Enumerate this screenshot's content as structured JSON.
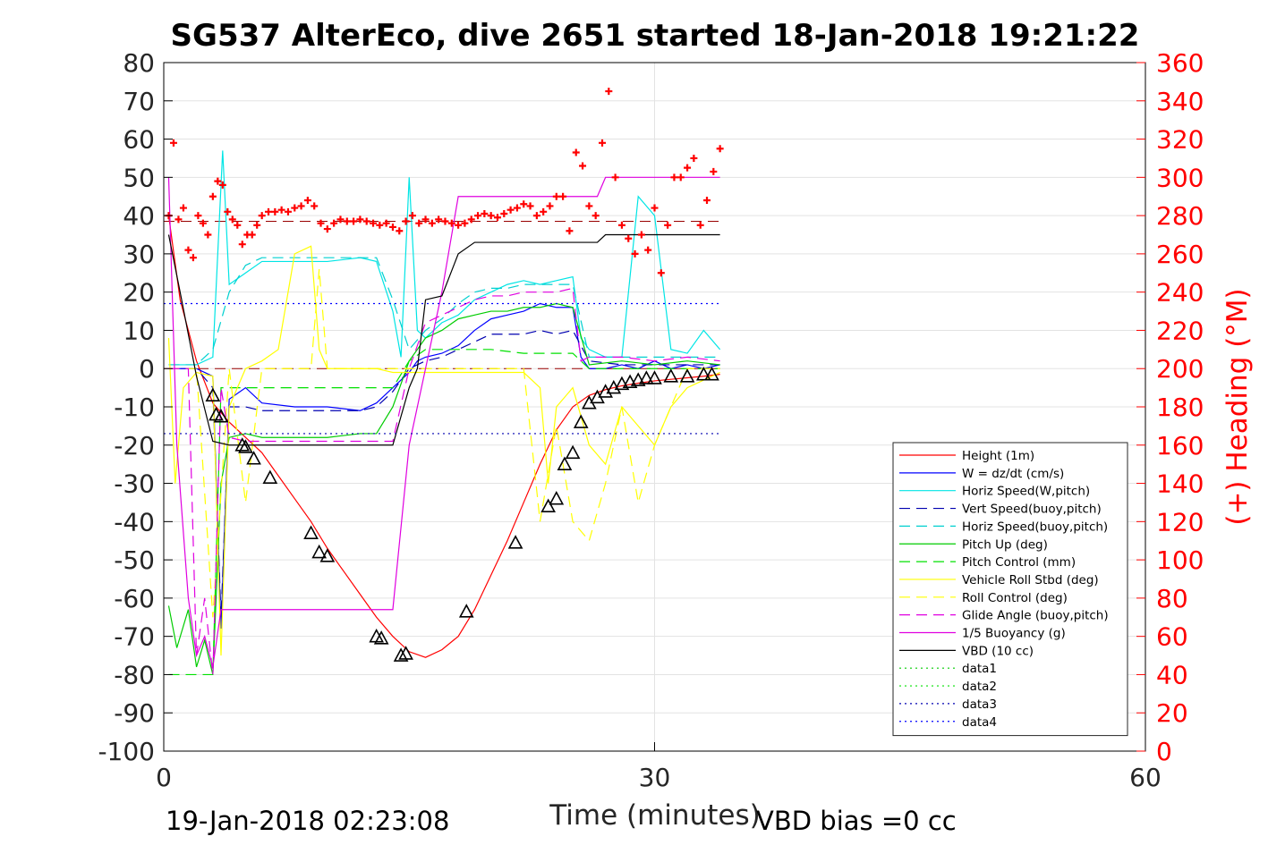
{
  "chart_data": {
    "type": "line",
    "title": "SG537 AlterEco, dive 2651 started 18-Jan-2018 19:21:22",
    "xlabel": "Time (minutes)",
    "ylabel_right": "(+) Heading (°M)",
    "xlim": [
      0,
      60
    ],
    "ylim": [
      -100,
      80
    ],
    "ylim_right": [
      0,
      360
    ],
    "xticks": [
      "0",
      "30",
      "60"
    ],
    "yticks": [
      "80",
      "70",
      "60",
      "50",
      "40",
      "30",
      "20",
      "10",
      "0",
      "-10",
      "-20",
      "-30",
      "-40",
      "-50",
      "-60",
      "-70",
      "-80",
      "-90",
      "-100"
    ],
    "yticks_right": [
      "360",
      "340",
      "320",
      "300",
      "280",
      "260",
      "240",
      "220",
      "200",
      "180",
      "160",
      "140",
      "120",
      "100",
      "80",
      "60",
      "40",
      "20",
      "0"
    ],
    "grid": true,
    "legend_position": "bottom-right",
    "footer_left": "19-Jan-2018 02:23:08",
    "footer_right": "VBD bias =0 cc",
    "colors": {
      "right_axis": "#ff0000",
      "heading_marker": "#ff0000"
    },
    "series": [
      {
        "name": "Height (1m)",
        "color": "#ff0000",
        "style": "solid",
        "x": [
          0.3,
          1,
          2,
          3,
          4,
          5,
          6,
          7,
          8,
          9,
          10,
          11,
          12,
          13,
          14,
          15,
          16,
          17,
          18,
          19,
          20,
          21,
          22,
          23,
          24,
          25,
          26,
          27,
          28,
          29,
          30,
          31,
          32,
          33,
          34
        ],
        "y": [
          40,
          18,
          2,
          -9,
          -14,
          -18,
          -22,
          -28,
          -34,
          -40,
          -47,
          -53,
          -59,
          -65,
          -70,
          -74,
          -75.5,
          -73.5,
          -70,
          -63,
          -54,
          -45,
          -35,
          -25,
          -16,
          -10,
          -7,
          -5.5,
          -4.5,
          -3.8,
          -3.2,
          -2.8,
          -2.4,
          -2,
          -1.5
        ]
      },
      {
        "name": "W = dz/dt (cm/s)",
        "color": "#0000ff",
        "style": "solid",
        "x": [
          0.3,
          1,
          2,
          3,
          3.5,
          4,
          5,
          6,
          8,
          10,
          12,
          13,
          14,
          15,
          15.5,
          16,
          17,
          18,
          19,
          20,
          21,
          22,
          23,
          24,
          25,
          25.5,
          26,
          27,
          28,
          29,
          30,
          31,
          32,
          33,
          34
        ],
        "y": [
          0,
          0,
          0,
          -2,
          -68,
          -8,
          -5,
          -9,
          -10,
          -10,
          -11,
          -9,
          -5,
          -1,
          2,
          3,
          4,
          6,
          10,
          13,
          14,
          15,
          17,
          16,
          16,
          3,
          0,
          0,
          1,
          0,
          2,
          0,
          1,
          0,
          1
        ]
      },
      {
        "name": "Horiz Speed(W,pitch)",
        "color": "#00e5e5",
        "style": "solid",
        "x": [
          0.3,
          1,
          2,
          3,
          3.3,
          3.6,
          4,
          5,
          6,
          8,
          10,
          12,
          13,
          14,
          14.5,
          15,
          15.5,
          16,
          17,
          18,
          19,
          20,
          21,
          22,
          23,
          24,
          25,
          25.5,
          26,
          27,
          28,
          29,
          30,
          31,
          32,
          33,
          34
        ],
        "y": [
          1,
          1,
          1,
          3,
          30,
          57,
          22,
          25,
          28,
          28,
          28,
          29,
          28,
          15,
          3,
          50,
          10,
          8,
          12,
          14,
          18,
          20,
          22,
          23,
          22,
          23,
          24,
          8,
          5,
          3,
          3,
          45,
          40,
          5,
          4,
          10,
          5
        ]
      },
      {
        "name": "Vert Speed(buoy,pitch)",
        "color": "#0000b0",
        "style": "dashed",
        "x": [
          0.3,
          1,
          2,
          3,
          3.5,
          4,
          5,
          6,
          8,
          10,
          12,
          13,
          14,
          15,
          16,
          17,
          18,
          19,
          20,
          21,
          22,
          23,
          24,
          25,
          26,
          28,
          30,
          32,
          34
        ],
        "y": [
          0,
          0,
          0,
          -5,
          -65,
          -10,
          -10,
          -11,
          -11,
          -11,
          -11,
          -10,
          -6,
          0,
          2,
          3,
          5,
          7,
          9,
          9,
          9,
          10,
          9,
          10,
          2,
          1,
          1,
          1,
          1
        ]
      },
      {
        "name": "Horiz Speed(buoy,pitch)",
        "color": "#00d0d0",
        "style": "dashed",
        "x": [
          0.3,
          1,
          2,
          3,
          4,
          5,
          6,
          8,
          10,
          12,
          13,
          14,
          15,
          16,
          17,
          18,
          19,
          20,
          21,
          22,
          23,
          24,
          25,
          26,
          28,
          30,
          32,
          34
        ],
        "y": [
          1,
          1,
          1,
          5,
          20,
          27,
          29,
          29,
          29,
          29,
          29,
          18,
          5,
          10,
          13,
          17,
          20,
          21,
          21,
          22,
          22,
          22,
          22,
          3,
          3,
          3,
          3,
          3
        ]
      },
      {
        "name": "Pitch Up (deg)",
        "color": "#00cc00",
        "style": "solid",
        "x": [
          0.3,
          0.8,
          1.5,
          2,
          2.5,
          3,
          3.5,
          4,
          5,
          6,
          8,
          10,
          12,
          13,
          14,
          15,
          16,
          17,
          18,
          19,
          20,
          21,
          22,
          23,
          24,
          25,
          26,
          28,
          30,
          32,
          34
        ],
        "y": [
          -62,
          -73,
          -63,
          -78,
          -71,
          -80,
          -30,
          -18,
          -17,
          -18,
          -18,
          -18,
          -17,
          -17,
          -10,
          2,
          8,
          10,
          13,
          14,
          15,
          15,
          16,
          16,
          17,
          16,
          1,
          2,
          1,
          2,
          1
        ]
      },
      {
        "name": "Pitch Control (mm)",
        "color": "#00e000",
        "style": "dashed",
        "x": [
          0.3,
          1,
          2,
          3,
          3.5,
          4,
          5,
          8,
          10,
          12,
          13,
          14,
          15,
          16,
          18,
          20,
          22,
          24,
          25,
          26,
          28,
          30,
          32,
          34
        ],
        "y": [
          -80,
          -80,
          -80,
          -80,
          -5,
          -5,
          -5,
          -5,
          -5,
          -5,
          -5,
          -5,
          2,
          5,
          5,
          5,
          4,
          4,
          4,
          0,
          0,
          0,
          0,
          0
        ]
      },
      {
        "name": "Vehicle Roll Stbd (deg)",
        "color": "#ffff00",
        "style": "solid",
        "x": [
          0.3,
          0.7,
          1.2,
          2,
          3,
          3.5,
          4,
          5,
          6,
          7,
          8,
          9,
          9.5,
          10,
          11,
          12,
          13,
          14,
          15,
          16,
          18,
          20,
          22,
          23,
          23.5,
          24,
          25,
          26,
          27,
          28,
          29,
          30,
          31,
          32,
          33,
          34
        ],
        "y": [
          8,
          -30,
          -5,
          -1,
          -2,
          -75,
          -10,
          0,
          2,
          5,
          30,
          32,
          5,
          0,
          0,
          0,
          0,
          -1,
          -1,
          -1,
          -1,
          -1,
          -1,
          -5,
          -30,
          -10,
          -5,
          -20,
          -25,
          -10,
          -15,
          -20,
          -10,
          -5,
          -3,
          -1
        ]
      },
      {
        "name": "Roll Control (deg)",
        "color": "#ffff00",
        "style": "dashed",
        "x": [
          0.3,
          1,
          2,
          3,
          4,
          5,
          6,
          8,
          9,
          9.5,
          10,
          12,
          13,
          14,
          15,
          16,
          18,
          20,
          22,
          23,
          24,
          25,
          26,
          27,
          28,
          29,
          30,
          32,
          34
        ],
        "y": [
          0,
          0,
          0,
          -65,
          0,
          -35,
          0,
          0,
          0,
          26,
          0,
          0,
          0,
          0,
          0,
          0,
          0,
          0,
          0,
          -40,
          -15,
          -40,
          -45,
          -30,
          -10,
          -35,
          -20,
          0,
          0
        ]
      },
      {
        "name": "Glide Angle (buoy,pitch)",
        "color": "#e000e0",
        "style": "dashed",
        "x": [
          0.3,
          1,
          1.5,
          2,
          2.5,
          3,
          3.5,
          4,
          5,
          8,
          10,
          12,
          13,
          14,
          15,
          16,
          17,
          18,
          19,
          20,
          21,
          22,
          23,
          24,
          25,
          25.5,
          26,
          28,
          30,
          32,
          34
        ],
        "y": [
          0,
          0,
          0,
          -75,
          -60,
          -80,
          -5,
          -18,
          -19,
          -19,
          -19,
          -19,
          -19,
          -19,
          0,
          12,
          14,
          16,
          18,
          19,
          19,
          20,
          20,
          20,
          21,
          2,
          3,
          3,
          2,
          3,
          2
        ]
      },
      {
        "name": "1/5 Buoyancy (g)",
        "color": "#e000e0",
        "style": "solid",
        "x": [
          0.3,
          0.8,
          1.5,
          2,
          2.5,
          3,
          3.5,
          4,
          6,
          8,
          10,
          12,
          13,
          14,
          15,
          16,
          17,
          18,
          19,
          20,
          22,
          24,
          26,
          26.5,
          27,
          28,
          30,
          32,
          34
        ],
        "y": [
          50,
          -20,
          -60,
          -75,
          -70,
          -78,
          -63,
          -63,
          -63,
          -63,
          -63,
          -63,
          -63,
          -63,
          -20,
          0,
          20,
          45,
          45,
          45,
          45,
          45,
          45,
          45,
          50,
          50,
          50,
          50,
          50
        ]
      },
      {
        "name": "VBD (10 cc)",
        "color": "#000000",
        "style": "solid",
        "x": [
          0.3,
          1,
          2,
          3,
          4,
          6,
          8,
          10,
          12,
          13,
          14,
          15,
          15.5,
          16,
          17,
          18,
          19,
          20,
          22,
          24,
          26,
          26.5,
          27,
          28,
          30,
          32,
          34
        ],
        "y": [
          35,
          20,
          -2,
          -19,
          -20,
          -20,
          -20,
          -20,
          -20,
          -20,
          -20,
          -5,
          0,
          18,
          19,
          30,
          33,
          33,
          33,
          33,
          33,
          33,
          35,
          35,
          35,
          35,
          35
        ]
      },
      {
        "name": "data1",
        "color": "#00cc00",
        "style": "dotted",
        "x": [],
        "y": []
      },
      {
        "name": "data2",
        "color": "#00e000",
        "style": "dotted",
        "x": [],
        "y": []
      },
      {
        "name": "data3",
        "color": "#0000b0",
        "style": "dotted",
        "x": [
          0,
          34
        ],
        "y": [
          -17,
          -17
        ]
      },
      {
        "name": "data4",
        "color": "#0000ff",
        "style": "dotted",
        "x": [
          0,
          34
        ],
        "y": [
          17,
          17
        ]
      }
    ],
    "reference_lines": [
      {
        "color": "#990000",
        "style": "dashed",
        "x": [
          0,
          34
        ],
        "y": [
          38.5,
          38.5
        ]
      },
      {
        "color": "#990000",
        "style": "dashed",
        "x": [
          0,
          34
        ],
        "y": [
          0,
          0
        ]
      }
    ],
    "heading_points": {
      "axis": "right",
      "color": "#ff0000",
      "marker": "+",
      "x": [
        0.3,
        0.6,
        0.9,
        1.2,
        1.5,
        1.8,
        2.1,
        2.4,
        2.7,
        3.0,
        3.3,
        3.6,
        3.9,
        4.2,
        4.5,
        4.8,
        5.1,
        5.4,
        5.7,
        6,
        6.4,
        6.8,
        7.2,
        7.6,
        8,
        8.4,
        8.8,
        9.2,
        9.6,
        10,
        10.4,
        10.8,
        11.2,
        11.6,
        12,
        12.4,
        12.8,
        13.2,
        13.6,
        14,
        14.4,
        14.8,
        15.2,
        15.6,
        16,
        16.4,
        16.8,
        17.2,
        17.6,
        18,
        18.4,
        18.8,
        19.2,
        19.6,
        20,
        20.4,
        20.8,
        21.2,
        21.6,
        22,
        22.4,
        22.8,
        23.2,
        23.6,
        24,
        24.4,
        24.8,
        25.2,
        25.6,
        26,
        26.4,
        26.8,
        27.2,
        27.6,
        28,
        28.4,
        28.8,
        29.2,
        29.6,
        30,
        30.4,
        30.8,
        31.2,
        31.6,
        32,
        32.4,
        32.8,
        33.2,
        33.6,
        34
      ],
      "y": [
        280,
        318,
        278,
        284,
        262,
        258,
        280,
        276,
        270,
        290,
        298,
        296,
        282,
        278,
        275,
        265,
        270,
        270,
        275,
        280,
        282,
        282,
        283,
        282,
        284,
        285,
        288,
        285,
        276,
        273,
        276,
        278,
        277,
        277,
        278,
        277,
        276,
        275,
        276,
        274,
        272,
        277,
        280,
        276,
        278,
        276,
        278,
        277,
        276,
        275,
        276,
        278,
        280,
        281,
        280,
        279,
        281,
        283,
        284,
        286,
        285,
        280,
        282,
        285,
        290,
        290,
        272,
        313,
        306,
        285,
        280,
        318,
        345,
        300,
        275,
        268,
        260,
        270,
        262,
        284,
        250,
        275,
        300,
        300,
        305,
        310,
        275,
        288,
        303,
        315
      ]
    },
    "depth_markers": {
      "color": "#000000",
      "marker": "triangle",
      "x": [
        3,
        3.2,
        3.5,
        4.8,
        5,
        5.5,
        6.5,
        9,
        9.5,
        10,
        13,
        13.3,
        14.5,
        14.8,
        18.5,
        21.5,
        23.5,
        24,
        24.5,
        25,
        25.5,
        26,
        26.5,
        27,
        27.5,
        28,
        28.5,
        29,
        29.5,
        30,
        31,
        32,
        33,
        33.5
      ],
      "y": [
        -7,
        -12,
        -12.5,
        -20,
        -20.5,
        -23.5,
        -28.5,
        -43,
        -48,
        -49,
        -70,
        -70.5,
        -75,
        -74.5,
        -63.5,
        -45.5,
        -36,
        -34,
        -25,
        -22,
        -14,
        -9,
        -7.5,
        -6,
        -5,
        -4,
        -3.5,
        -3,
        -2.5,
        -2.5,
        -2,
        -2,
        -1.5,
        -1.5
      ]
    }
  }
}
